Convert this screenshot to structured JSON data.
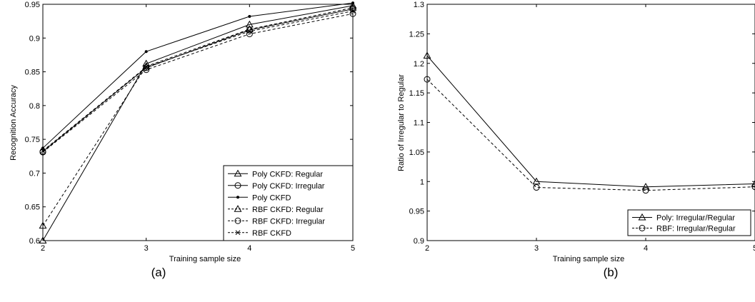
{
  "chart_data": [
    {
      "type": "line",
      "panel_label": "(a)",
      "xlabel": "Training sample size",
      "ylabel": "Recognition Accuracy",
      "xlim": [
        2,
        5
      ],
      "ylim": [
        0.6,
        0.95
      ],
      "x_ticks": [
        2,
        3,
        4,
        5
      ],
      "y_ticks": [
        0.6,
        0.65,
        0.7,
        0.75,
        0.8,
        0.85,
        0.9,
        0.95
      ],
      "x_tick_labels": [
        "2",
        "3",
        "4",
        "5"
      ],
      "y_tick_labels": [
        "0.6",
        "0.65",
        "0.7",
        "0.75",
        "0.8",
        "0.85",
        "0.9",
        "0.95"
      ],
      "grid": false,
      "legend_position": "bottom-right",
      "x": [
        2,
        3,
        4,
        5
      ],
      "series": [
        {
          "name": "Poly CKFD: Regular",
          "values": [
            0.6,
            0.862,
            0.92,
            0.948
          ],
          "marker": "triangle",
          "dash": "solid"
        },
        {
          "name": "Poly CKFD: Irregular",
          "values": [
            0.732,
            0.856,
            0.912,
            0.943
          ],
          "marker": "circle",
          "dash": "solid"
        },
        {
          "name": "Poly CKFD",
          "values": [
            0.737,
            0.88,
            0.932,
            0.952
          ],
          "marker": "dot",
          "dash": "solid"
        },
        {
          "name": "RBF CKFD: Regular",
          "values": [
            0.622,
            0.858,
            0.913,
            0.945
          ],
          "marker": "triangle",
          "dash": "dashed"
        },
        {
          "name": "RBF CKFD: Irregular",
          "values": [
            0.731,
            0.853,
            0.906,
            0.936
          ],
          "marker": "circle",
          "dash": "dashed"
        },
        {
          "name": "RBF CKFD",
          "values": [
            0.733,
            0.857,
            0.91,
            0.94
          ],
          "marker": "x",
          "dash": "dashed"
        }
      ]
    },
    {
      "type": "line",
      "panel_label": "(b)",
      "xlabel": "Training sample size",
      "ylabel": "Ratio of Irregular to Regular",
      "xlim": [
        2,
        5
      ],
      "ylim": [
        0.9,
        1.3
      ],
      "x_ticks": [
        2,
        3,
        4,
        5
      ],
      "y_ticks": [
        0.9,
        0.95,
        1,
        1.05,
        1.1,
        1.15,
        1.2,
        1.25,
        1.3
      ],
      "x_tick_labels": [
        "2",
        "3",
        "4",
        "5"
      ],
      "y_tick_labels": [
        "0.9",
        "0.95",
        "1",
        "1.05",
        "1.1",
        "1.15",
        "1.2",
        "1.25",
        "1.3"
      ],
      "grid": false,
      "legend_position": "bottom-right",
      "x": [
        2,
        3,
        4,
        5
      ],
      "series": [
        {
          "name": "Poly: Irregular/Regular",
          "values": [
            1.213,
            1.0,
            0.991,
            0.996
          ],
          "marker": "triangle",
          "dash": "solid"
        },
        {
          "name": "RBF: Irregular/Regular",
          "values": [
            1.173,
            0.99,
            0.985,
            0.991
          ],
          "marker": "circle",
          "dash": "dashed"
        }
      ]
    }
  ]
}
